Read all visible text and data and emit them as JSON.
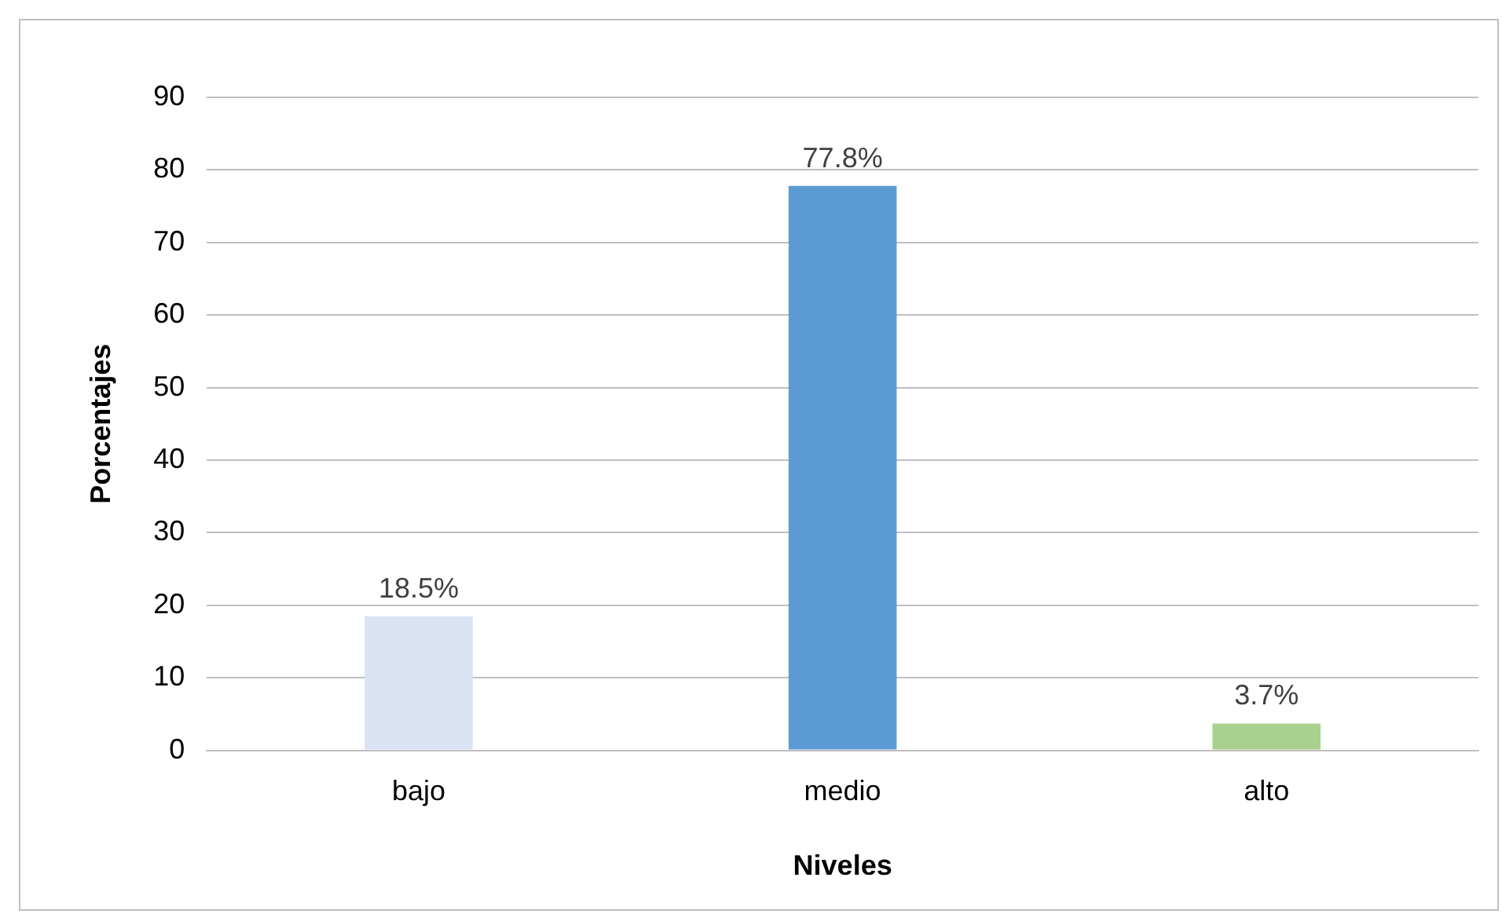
{
  "chart_data": {
    "type": "bar",
    "xlabel": "Niveles",
    "ylabel": "Porcentajes",
    "categories": [
      "bajo",
      "medio",
      "alto"
    ],
    "values": [
      18.5,
      77.8,
      3.7
    ],
    "colors": [
      "#dae3f3",
      "#5b9bd5",
      "#a9d18e"
    ],
    "value_labels": [
      "18.5%",
      "77.8%",
      "3.7%"
    ],
    "ylim": [
      0,
      90
    ],
    "yticks": [
      0,
      10,
      20,
      30,
      40,
      50,
      60,
      70,
      80,
      90
    ],
    "grid": "y",
    "legend": false
  }
}
